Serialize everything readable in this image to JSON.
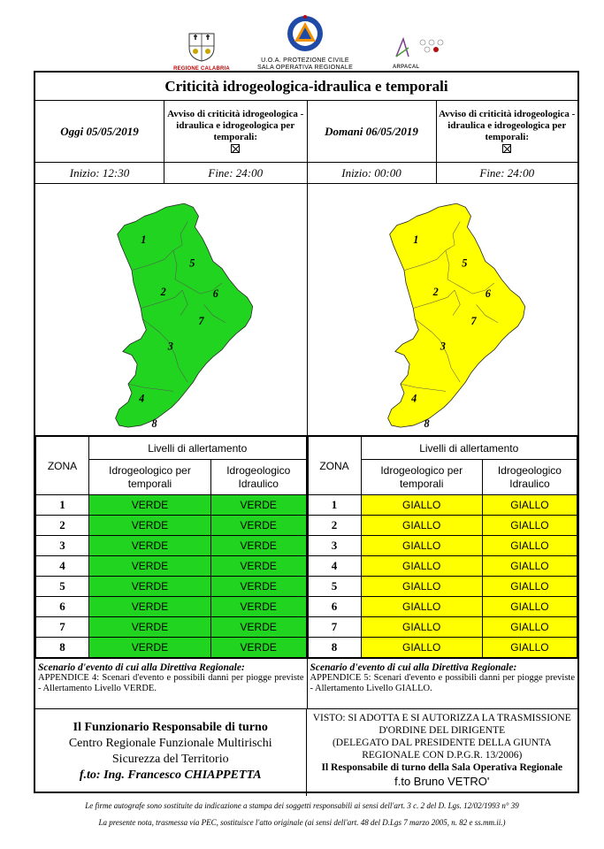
{
  "logos": {
    "left_caption": "REGIONE CALABRIA",
    "center_caption_1": "U.O.A. PROTEZIONE CIVILE",
    "center_caption_2": "SALA OPERATIVA REGIONALE",
    "right_caption": "ARPACAL"
  },
  "title": "Criticità idrogeologica-idraulica e temporali",
  "today": {
    "date": "Oggi 05/05/2019",
    "avviso": "Avviso di criticità idrogeologica - idraulica e idrogeologica per temporali:",
    "inizio": "Inizio: 12:30",
    "fine": "Fine: 24:00",
    "map_color": "#21d41f",
    "level_color": "#21d41f",
    "scenario_heading": "Scenario d'evento di cui alla Direttiva Regionale:",
    "scenario_text": "APPENDICE 4: Scenari d'evento e possibili danni per piogge previste - Allertamento Livello VERDE.",
    "zones": [
      {
        "zone": "1",
        "temporali": "VERDE",
        "idraulico": "VERDE"
      },
      {
        "zone": "2",
        "temporali": "VERDE",
        "idraulico": "VERDE"
      },
      {
        "zone": "3",
        "temporali": "VERDE",
        "idraulico": "VERDE"
      },
      {
        "zone": "4",
        "temporali": "VERDE",
        "idraulico": "VERDE"
      },
      {
        "zone": "5",
        "temporali": "VERDE",
        "idraulico": "VERDE"
      },
      {
        "zone": "6",
        "temporali": "VERDE",
        "idraulico": "VERDE"
      },
      {
        "zone": "7",
        "temporali": "VERDE",
        "idraulico": "VERDE"
      },
      {
        "zone": "8",
        "temporali": "VERDE",
        "idraulico": "VERDE"
      }
    ]
  },
  "tomorrow": {
    "date": "Domani 06/05/2019",
    "avviso": "Avviso di criticità idrogeologica - idraulica e idrogeologica per temporali:",
    "inizio": "Inizio: 00:00",
    "fine": "Fine: 24:00",
    "map_color": "#ffff00",
    "level_color": "#ffff00",
    "scenario_heading": "Scenario d'evento di cui alla Direttiva Regionale:",
    "scenario_text": "APPENDICE 5: Scenari d'evento e possibili danni per piogge previste - Allertamento Livello GIALLO.",
    "zones": [
      {
        "zone": "1",
        "temporali": "GIALLO",
        "idraulico": "GIALLO"
      },
      {
        "zone": "2",
        "temporali": "GIALLO",
        "idraulico": "GIALLO"
      },
      {
        "zone": "3",
        "temporali": "GIALLO",
        "idraulico": "GIALLO"
      },
      {
        "zone": "4",
        "temporali": "GIALLO",
        "idraulico": "GIALLO"
      },
      {
        "zone": "5",
        "temporali": "GIALLO",
        "idraulico": "GIALLO"
      },
      {
        "zone": "6",
        "temporali": "GIALLO",
        "idraulico": "GIALLO"
      },
      {
        "zone": "7",
        "temporali": "GIALLO",
        "idraulico": "GIALLO"
      },
      {
        "zone": "8",
        "temporali": "GIALLO",
        "idraulico": "GIALLO"
      }
    ]
  },
  "table_headers": {
    "zona": "ZONA",
    "livelli": "Livelli di allertamento",
    "col1_line1": "Idrogeologico per",
    "col1_line2": "temporali",
    "col2_line1": "Idrogeologico",
    "col2_line2": "Idraulico"
  },
  "map_zone_labels": [
    "1",
    "5",
    "2",
    "6",
    "7",
    "3",
    "4",
    "8"
  ],
  "signature_left": {
    "line1": "Il Funzionario Responsabile di turno",
    "line2": "Centro Regionale Funzionale Multirischi",
    "line3": "Sicurezza del Territorio",
    "line4": "f.to: Ing. Francesco CHIAPPETTA"
  },
  "signature_right": {
    "line1": "VISTO: SI ADOTTA E SI AUTORIZZA LA TRASMISSIONE",
    "line2": "D'ORDINE DEL DIRIGENTE",
    "line3": "(DELEGATO DAL PRESIDENTE DELLA GIUNTA",
    "line4": "REGIONALE CON D.P.G.R. 13/2006)",
    "line5": "Il Responsabile di turno della Sala Operativa Regionale",
    "line6": "f.to Bruno VETRO'"
  },
  "footer": {
    "line1": "Le firme autografe sono sostituite da indicazione a stampa dei soggetti responsabili ai sensi dell'art. 3 c. 2 del D. Lgs. 12/02/1993 n° 39",
    "line2": "La presente nota, trasmessa via PEC, sostituisce l'atto originale (ai sensi dell'art. 48 del D.Lgs 7 marzo 2005, n. 82 e ss.mm.ii.)"
  }
}
